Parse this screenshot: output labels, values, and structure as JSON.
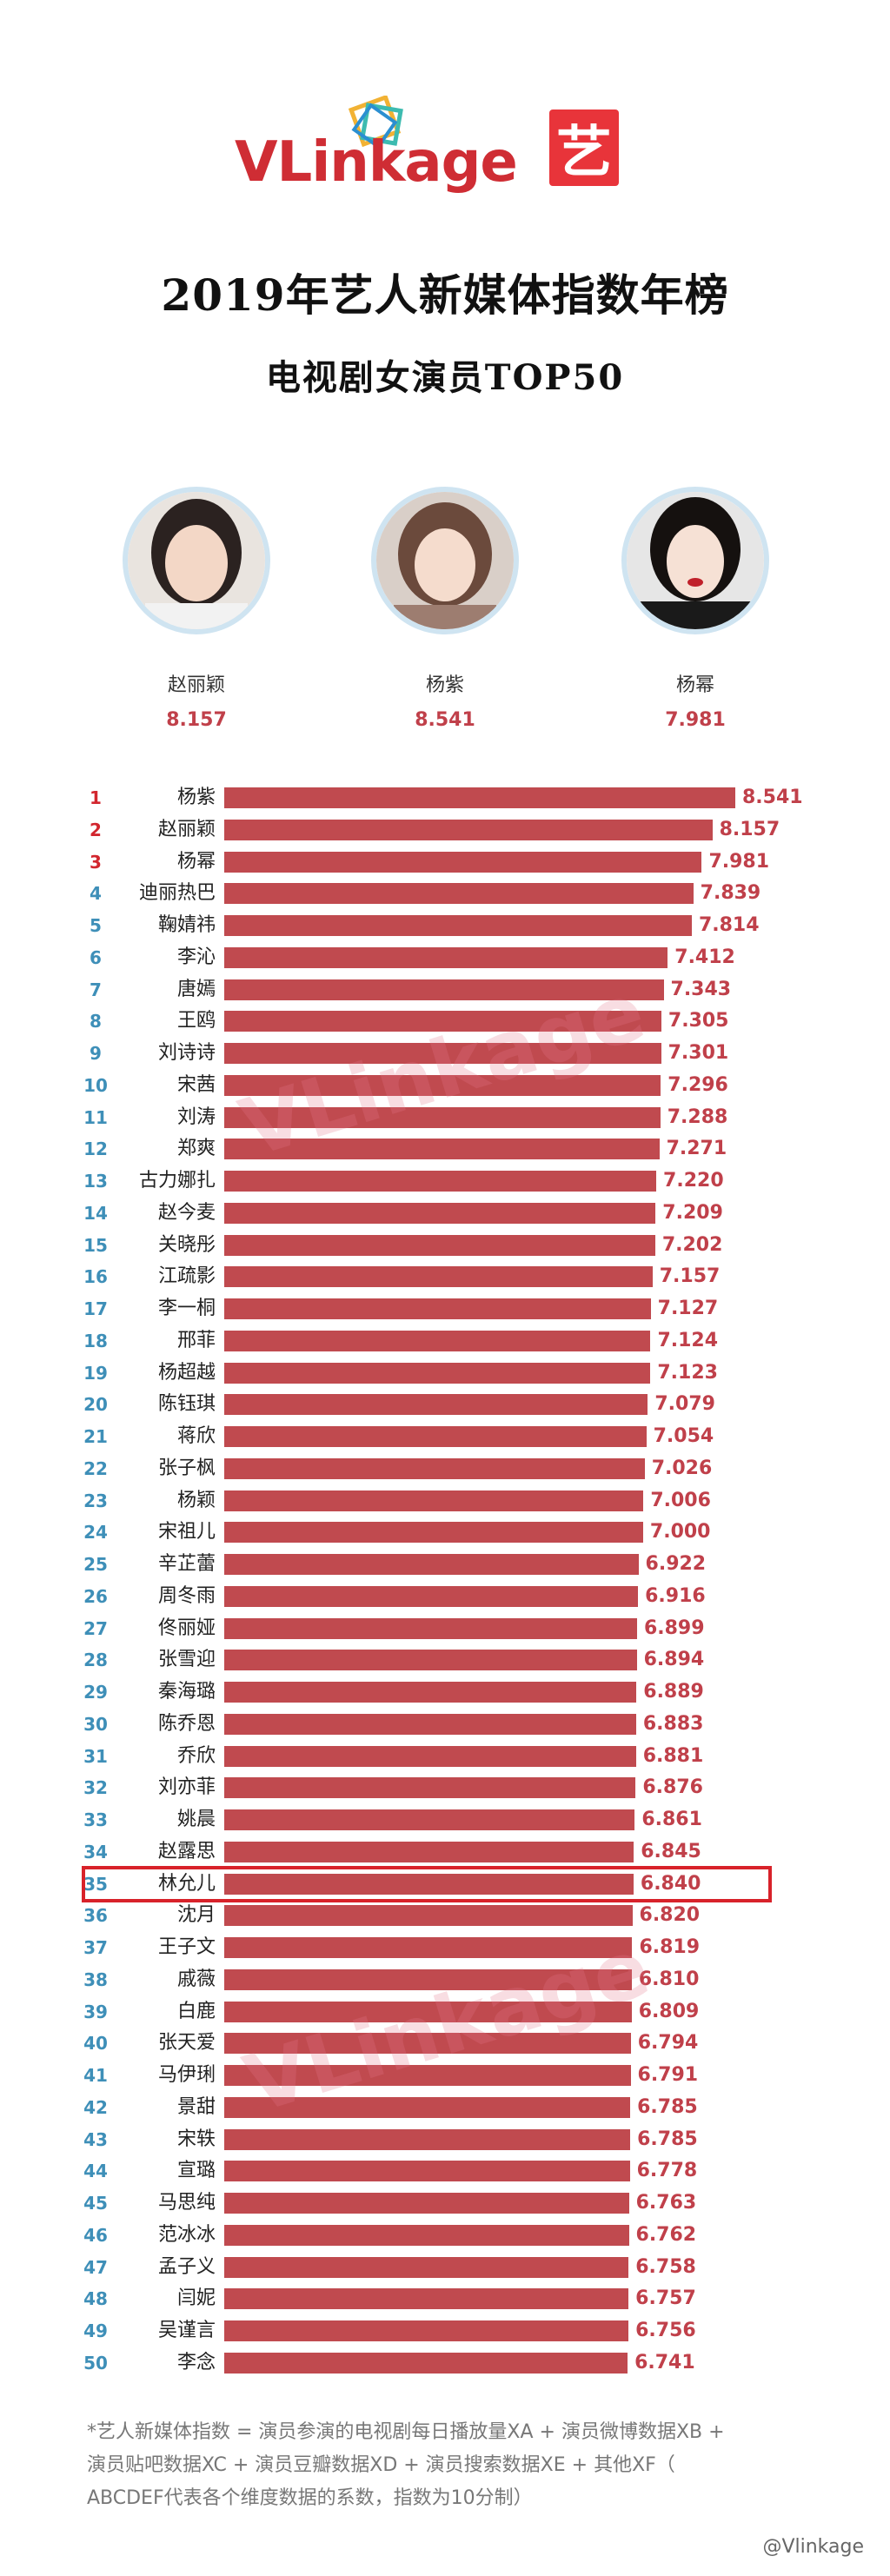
{
  "header": {
    "logo_text": "VLinkage",
    "badge": "艺",
    "title": "2019年艺人新媒体指数年榜",
    "subtitle": "电视剧女演员TOP50"
  },
  "top3": [
    {
      "name": "赵丽颖",
      "score": "8.157"
    },
    {
      "name": "杨紫",
      "score": "8.541"
    },
    {
      "name": "杨幂",
      "score": "7.981"
    }
  ],
  "watermark_text": "VLinkage",
  "highlight_rank": 35,
  "chart_data": {
    "type": "bar",
    "orientation": "horizontal",
    "xlim": [
      0,
      8.541
    ],
    "categories": [
      "杨紫",
      "赵丽颖",
      "杨幂",
      "迪丽热巴",
      "鞠婧祎",
      "李沁",
      "唐嫣",
      "王鸥",
      "刘诗诗",
      "宋茜",
      "刘涛",
      "郑爽",
      "古力娜扎",
      "赵今麦",
      "关晓彤",
      "江疏影",
      "李一桐",
      "邢菲",
      "杨超越",
      "陈钰琪",
      "蒋欣",
      "张子枫",
      "杨颖",
      "宋祖儿",
      "辛芷蕾",
      "周冬雨",
      "佟丽娅",
      "张雪迎",
      "秦海璐",
      "陈乔恩",
      "乔欣",
      "刘亦菲",
      "姚晨",
      "赵露思",
      "林允儿",
      "沈月",
      "王子文",
      "戚薇",
      "白鹿",
      "张天爱",
      "马伊琍",
      "景甜",
      "宋轶",
      "宣璐",
      "马思纯",
      "范冰冰",
      "孟子义",
      "闫妮",
      "吴谨言",
      "李念"
    ],
    "values": [
      8.541,
      8.157,
      7.981,
      7.839,
      7.814,
      7.412,
      7.343,
      7.305,
      7.301,
      7.296,
      7.288,
      7.271,
      7.22,
      7.209,
      7.202,
      7.157,
      7.127,
      7.124,
      7.123,
      7.079,
      7.054,
      7.026,
      7.006,
      7.0,
      6.922,
      6.916,
      6.899,
      6.894,
      6.889,
      6.883,
      6.881,
      6.876,
      6.861,
      6.845,
      6.84,
      6.82,
      6.819,
      6.81,
      6.809,
      6.794,
      6.791,
      6.785,
      6.785,
      6.778,
      6.763,
      6.762,
      6.758,
      6.757,
      6.756,
      6.741
    ],
    "value_labels": [
      "8.541",
      "8.157",
      "7.981",
      "7.839",
      "7.814",
      "7.412",
      "7.343",
      "7.305",
      "7.301",
      "7.296",
      "7.288",
      "7.271",
      "7.220",
      "7.209",
      "7.202",
      "7.157",
      "7.127",
      "7.124",
      "7.123",
      "7.079",
      "7.054",
      "7.026",
      "7.006",
      "7.000",
      "6.922",
      "6.916",
      "6.899",
      "6.894",
      "6.889",
      "6.883",
      "6.881",
      "6.876",
      "6.861",
      "6.845",
      "6.840",
      "6.820",
      "6.819",
      "6.810",
      "6.809",
      "6.794",
      "6.791",
      "6.785",
      "6.785",
      "6.778",
      "6.763",
      "6.762",
      "6.758",
      "6.757",
      "6.756",
      "6.741"
    ],
    "bar_color": "#c04a4f",
    "rank_color_top": "#d2262e",
    "rank_color": "#3e8fb8"
  },
  "footer": {
    "line1": "*艺人新媒体指数 = 演员参演的电视剧每日播放量XA + 演员微博数据XB +",
    "line2": "演员贴吧数据XC + 演员豆瓣数据XD + 演员搜索数据XE + 其他XF（",
    "line3": "ABCDEF代表各个维度数据的系数，指数为10分制）",
    "weibo": "@Vlinkage"
  }
}
